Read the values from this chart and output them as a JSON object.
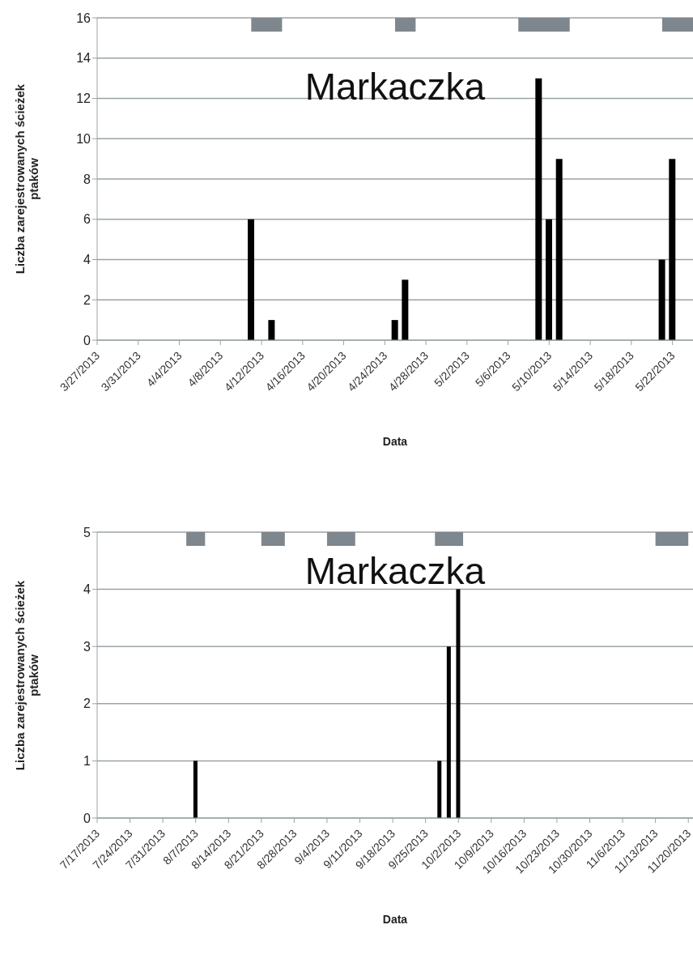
{
  "chart_data": [
    {
      "type": "bar",
      "title": "Markaczka",
      "xlabel": "Data",
      "ylabel": "Liczba zarejestrowanych ścieżek ptaków",
      "x": [
        "2013-04-11",
        "2013-04-13",
        "2013-04-25",
        "2013-04-26",
        "2013-05-09",
        "2013-05-10",
        "2013-05-11",
        "2013-05-21",
        "2013-05-22"
      ],
      "values": [
        6,
        1,
        1,
        3,
        13,
        6,
        9,
        4,
        9
      ],
      "color": "#000000",
      "xlim": [
        "2013-03-27",
        "2013-05-24"
      ],
      "xticks": [
        {
          "value": "2013-03-27",
          "label": "3/27/2013"
        },
        {
          "value": "2013-03-31",
          "label": "3/31/2013"
        },
        {
          "value": "2013-04-04",
          "label": "4/4/2013"
        },
        {
          "value": "2013-04-08",
          "label": "4/8/2013"
        },
        {
          "value": "2013-04-12",
          "label": "4/12/2013"
        },
        {
          "value": "2013-04-16",
          "label": "4/16/2013"
        },
        {
          "value": "2013-04-20",
          "label": "4/20/2013"
        },
        {
          "value": "2013-04-24",
          "label": "4/24/2013"
        },
        {
          "value": "2013-04-28",
          "label": "4/28/2013"
        },
        {
          "value": "2013-05-02",
          "label": "5/2/2013"
        },
        {
          "value": "2013-05-06",
          "label": "5/6/2013"
        },
        {
          "value": "2013-05-10",
          "label": "5/10/2013"
        },
        {
          "value": "2013-05-14",
          "label": "5/14/2013"
        },
        {
          "value": "2013-05-18",
          "label": "5/18/2013"
        },
        {
          "value": "2013-05-22",
          "label": "5/22/2013"
        }
      ],
      "ylim": [
        0,
        16
      ],
      "yticks": [
        0,
        2,
        4,
        6,
        8,
        10,
        12,
        14,
        16
      ],
      "grid": "y",
      "bands": [
        {
          "axis": "x",
          "from": "2013-04-11",
          "to": "2013-04-14",
          "color": "#7f878e"
        },
        {
          "axis": "x",
          "from": "2013-04-25",
          "to": "2013-04-27",
          "color": "#7f878e"
        },
        {
          "axis": "x",
          "from": "2013-05-07",
          "to": "2013-05-12",
          "color": "#7f878e"
        },
        {
          "axis": "x",
          "from": "2013-05-21",
          "to": "2013-05-24",
          "color": "#7f878e"
        }
      ]
    },
    {
      "type": "bar",
      "title": "Markaczka",
      "xlabel": "Data",
      "ylabel": "Liczba zarejestrowanych ścieżek ptaków",
      "x": [
        "2013-08-07",
        "2013-09-28",
        "2013-09-30",
        "2013-10-02"
      ],
      "values": [
        1,
        1,
        3,
        4
      ],
      "color": "#000000",
      "xlim": [
        "2013-07-17",
        "2013-11-21"
      ],
      "xticks": [
        {
          "value": "2013-07-17",
          "label": "7/17/2013"
        },
        {
          "value": "2013-07-24",
          "label": "7/24/2013"
        },
        {
          "value": "2013-07-31",
          "label": "7/31/2013"
        },
        {
          "value": "2013-08-07",
          "label": "8/7/2013"
        },
        {
          "value": "2013-08-14",
          "label": "8/14/2013"
        },
        {
          "value": "2013-08-21",
          "label": "8/21/2013"
        },
        {
          "value": "2013-08-28",
          "label": "8/28/2013"
        },
        {
          "value": "2013-09-04",
          "label": "9/4/2013"
        },
        {
          "value": "2013-09-11",
          "label": "9/11/2013"
        },
        {
          "value": "2013-09-18",
          "label": "9/18/2013"
        },
        {
          "value": "2013-09-25",
          "label": "9/25/2013"
        },
        {
          "value": "2013-10-02",
          "label": "10/2/2013"
        },
        {
          "value": "2013-10-09",
          "label": "10/9/2013"
        },
        {
          "value": "2013-10-16",
          "label": "10/16/2013"
        },
        {
          "value": "2013-10-23",
          "label": "10/23/2013"
        },
        {
          "value": "2013-10-30",
          "label": "10/30/2013"
        },
        {
          "value": "2013-11-06",
          "label": "11/6/2013"
        },
        {
          "value": "2013-11-13",
          "label": "11/13/2013"
        },
        {
          "value": "2013-11-20",
          "label": "11/20/2013"
        }
      ],
      "ylim": [
        0,
        5
      ],
      "yticks": [
        0,
        1,
        2,
        3,
        4,
        5
      ],
      "grid": "y",
      "bands": [
        {
          "axis": "x",
          "from": "2013-08-05",
          "to": "2013-08-09",
          "color": "#7f878e"
        },
        {
          "axis": "x",
          "from": "2013-08-21",
          "to": "2013-08-26",
          "color": "#7f878e"
        },
        {
          "axis": "x",
          "from": "2013-09-04",
          "to": "2013-09-10",
          "color": "#7f878e"
        },
        {
          "axis": "x",
          "from": "2013-09-27",
          "to": "2013-10-03",
          "color": "#7f878e"
        },
        {
          "axis": "x",
          "from": "2013-11-13",
          "to": "2013-11-20",
          "color": "#7f878e"
        }
      ]
    }
  ]
}
